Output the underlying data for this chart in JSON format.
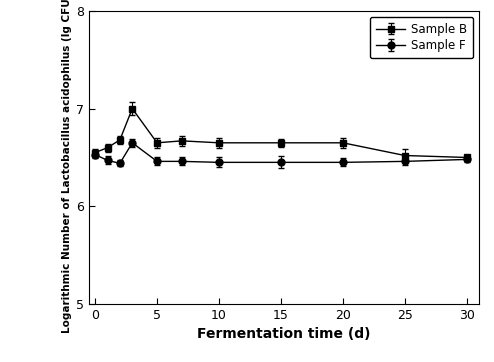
{
  "x": [
    0,
    1,
    2,
    3,
    5,
    7,
    10,
    15,
    20,
    25,
    30
  ],
  "sample_b_y": [
    6.55,
    6.6,
    6.68,
    7.0,
    6.65,
    6.67,
    6.65,
    6.65,
    6.65,
    6.52,
    6.5
  ],
  "sample_b_err": [
    0.04,
    0.04,
    0.04,
    0.07,
    0.05,
    0.05,
    0.05,
    0.04,
    0.05,
    0.07,
    0.03
  ],
  "sample_f_y": [
    6.53,
    6.47,
    6.44,
    6.65,
    6.46,
    6.46,
    6.45,
    6.45,
    6.45,
    6.46,
    6.48
  ],
  "sample_f_err": [
    0.04,
    0.04,
    0.03,
    0.04,
    0.04,
    0.04,
    0.05,
    0.06,
    0.04,
    0.04,
    0.03
  ],
  "xlabel": "Fermentation time (d)",
  "ylabel": "Logarithmic Number of Lactobacillus acidophilus (lg CFU/g)",
  "ylim": [
    5,
    8
  ],
  "xlim": [
    -0.5,
    31
  ],
  "yticks": [
    5,
    6,
    7,
    8
  ],
  "xticks": [
    0,
    5,
    10,
    15,
    20,
    25,
    30
  ],
  "legend_labels": [
    "Sample B",
    "Sample F"
  ],
  "line_color": "#000000",
  "marker_b": "s",
  "marker_f": "o",
  "markersize": 5,
  "linewidth": 1.0,
  "capsize": 2.5,
  "figure_bg": "#ffffff",
  "axes_bg": "#ffffff"
}
